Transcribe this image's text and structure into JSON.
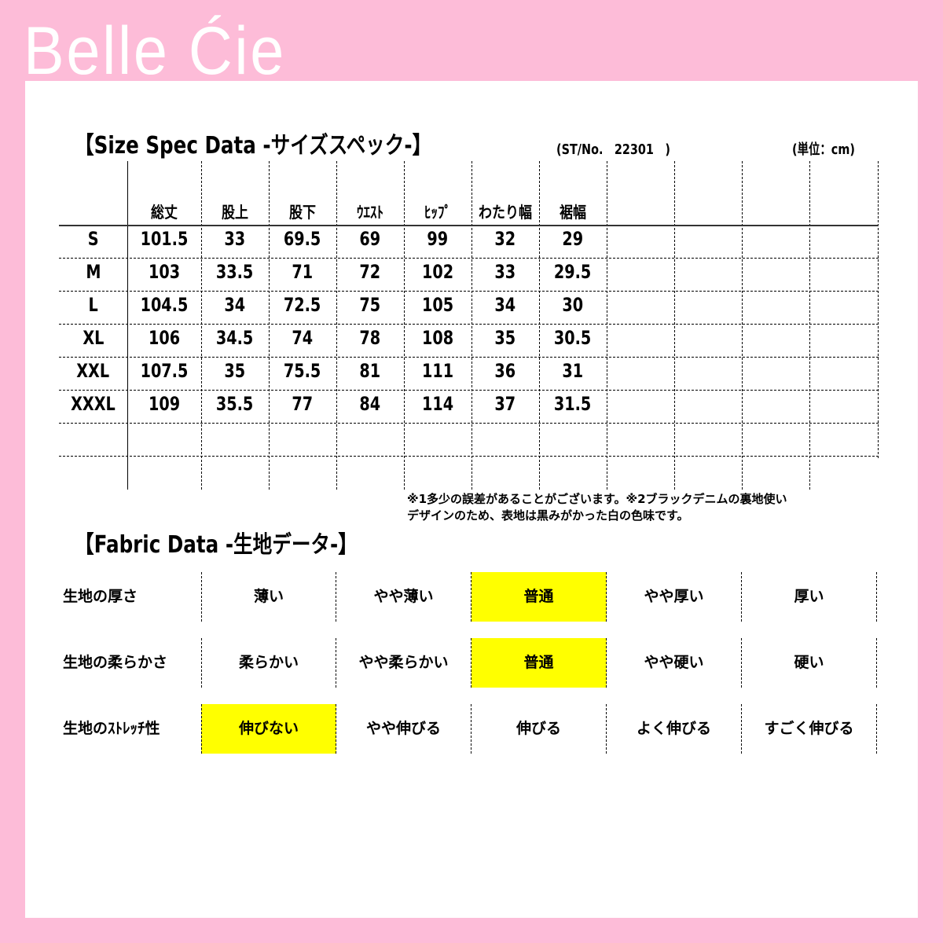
{
  "brand": "Belle Ćie",
  "size_spec": {
    "title": "【Size Spec Data -サイズスペック-】",
    "style_no": "(ST/No.　22301　)",
    "unit": "(単位：cm)",
    "headers": [
      "総丈",
      "股上",
      "股下",
      "ｳｴｽﾄ",
      "ﾋｯﾌﾟ",
      "わたり幅",
      "裾幅"
    ],
    "rows": [
      {
        "size": "S",
        "values": [
          "101.5",
          "33",
          "69.5",
          "69",
          "99",
          "32",
          "29"
        ]
      },
      {
        "size": "M",
        "values": [
          "103",
          "33.5",
          "71",
          "72",
          "102",
          "33",
          "29.5"
        ]
      },
      {
        "size": "L",
        "values": [
          "104.5",
          "34",
          "72.5",
          "75",
          "105",
          "34",
          "30"
        ]
      },
      {
        "size": "XL",
        "values": [
          "106",
          "34.5",
          "74",
          "78",
          "108",
          "35",
          "30.5"
        ]
      },
      {
        "size": "XXL",
        "values": [
          "107.5",
          "35",
          "75.5",
          "81",
          "111",
          "36",
          "31"
        ]
      },
      {
        "size": "XXXL",
        "values": [
          "109",
          "35.5",
          "77",
          "84",
          "114",
          "37",
          "31.5"
        ]
      }
    ],
    "notes": [
      "※1多少の誤差があることがございます。※2ブラックデニムの裏地使い",
      "デザインのため、表地は黒みがかった白の色味です。"
    ]
  },
  "fabric": {
    "title": "【Fabric Data -生地データ-】",
    "highlight_color": "#ffff00",
    "rows": [
      {
        "label": "生地の厚さ",
        "options": [
          "薄い",
          "やや薄い",
          "普通",
          "やや厚い",
          "厚い"
        ],
        "selected": 2
      },
      {
        "label": "生地の柔らかさ",
        "options": [
          "柔らかい",
          "やや柔らかい",
          "普通",
          "やや硬い",
          "硬い"
        ],
        "selected": 2
      },
      {
        "label": "生地のｽﾄﾚｯﾁ性",
        "options": [
          "伸びない",
          "やや伸びる",
          "伸びる",
          "よく伸びる",
          "すごく伸びる"
        ],
        "selected": 0
      }
    ]
  }
}
